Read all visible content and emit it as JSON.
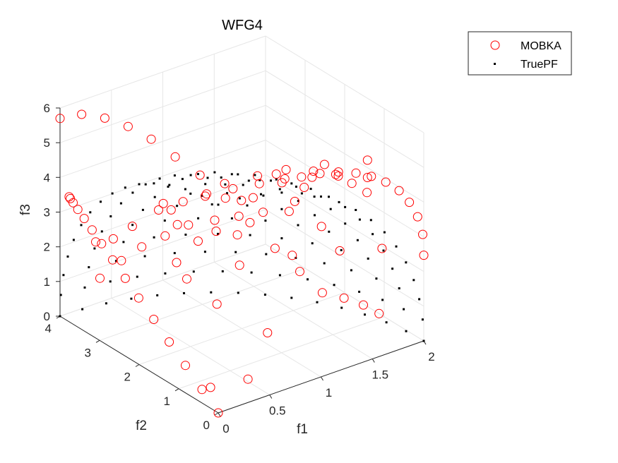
{
  "chart_data": {
    "type": "scatter",
    "title": "WFG4",
    "xlabel": "f1",
    "ylabel": "f2",
    "zlabel": "f3",
    "xlim": [
      0,
      2
    ],
    "ylim": [
      0,
      4
    ],
    "zlim": [
      0,
      6
    ],
    "xticks": [
      "0",
      "0.5",
      "1",
      "1.5",
      "2"
    ],
    "yticks": [
      "0",
      "1",
      "2",
      "3",
      "4"
    ],
    "zticks": [
      "0",
      "1",
      "2",
      "3",
      "4",
      "5",
      "6"
    ],
    "view": "3-D, azimuth -37.5°, elevation 30°",
    "grid": true,
    "legend_position": "top-right",
    "surface": "ellipsoid octant f1²/4 + f2²/16 + f3²/36 = 1",
    "series": [
      {
        "name": "MOBKA",
        "marker": "circle",
        "color": "#ff0000",
        "points_x": [
          0.0,
          0.0,
          0.0,
          0.0,
          0.0,
          0.0,
          0.0,
          0.0,
          0.0,
          0.0,
          0.0,
          0.0,
          0.0,
          0.0,
          0.0,
          0.0,
          0.21,
          0.42,
          0.62,
          0.81,
          0.99,
          1.17,
          1.34,
          1.49,
          1.63,
          1.76,
          1.86,
          1.94,
          1.99,
          2.0,
          0.21,
          0.42,
          0.62,
          0.81,
          0.99,
          1.17,
          1.34,
          1.49,
          1.63,
          1.76,
          1.86,
          1.94,
          1.99,
          2.0,
          0.48,
          0.95,
          1.38,
          1.76,
          0.42,
          0.81,
          1.17,
          1.49,
          1.76,
          1.94,
          0.18,
          0.35,
          0.52,
          0.68,
          0.83,
          0.98,
          1.12,
          1.24,
          1.36,
          1.46,
          0.21,
          0.42,
          0.62,
          0.81,
          0.99,
          1.17,
          1.34,
          1.49,
          1.63,
          1.76,
          0.34,
          0.64,
          0.92,
          1.16,
          1.35,
          1.49,
          1.57,
          1.64,
          1.12,
          0.85,
          0.55,
          0.27,
          0.48,
          0.95,
          1.38,
          1.76,
          0.21,
          0.62,
          0.99,
          1.34,
          1.63
        ],
        "points_y": [
          0.0,
          0.41,
          0.83,
          1.24,
          1.63,
          2.01,
          2.35,
          2.67,
          2.95,
          3.19,
          3.39,
          3.55,
          3.67,
          3.74,
          3.77,
          4.0,
          4.0,
          3.96,
          3.89,
          3.8,
          3.66,
          3.5,
          3.3,
          3.07,
          2.8,
          2.51,
          2.2,
          1.86,
          1.5,
          1.13,
          0.74,
          0.34,
          0.0,
          0.0,
          0.0,
          0.0,
          0.0,
          0.0,
          0.0,
          0.0,
          0.0,
          0.0,
          0.0,
          0.0,
          0.0,
          3.5,
          3.0,
          2.4,
          1.6,
          2.9,
          2.5,
          2.0,
          1.5,
          0.9,
          0.5,
          3.9,
          3.8,
          3.7,
          3.5,
          3.3,
          3.0,
          2.7,
          2.4,
          2.0,
          1.6,
          2.6,
          2.5,
          2.4,
          2.2,
          2.0,
          1.8,
          1.5,
          1.2,
          0.8,
          0.4,
          1.5,
          1.4,
          1.3,
          1.1,
          0.9,
          0.7,
          0.5,
          0.3,
          3.4,
          3.6,
          3.8,
          3.9,
          1.0,
          0.9,
          0.8,
          0.6,
          3.0,
          2.9,
          2.6,
          2.3,
          1.8
        ],
        "points_z": [
          0.0,
          0.39,
          0.79,
          1.18,
          1.56,
          1.91,
          2.24,
          2.55,
          2.82,
          3.05,
          3.24,
          3.39,
          3.5,
          3.57,
          3.6,
          5.7,
          5.6,
          5.3,
          4.9,
          4.4,
          3.8,
          3.2,
          2.5,
          1.8,
          1.1,
          0.5,
          0.0,
          0.0,
          0.0,
          0.0,
          0.0,
          0.3,
          5.99,
          5.96,
          5.87,
          5.73,
          5.52,
          5.27,
          4.96,
          4.58,
          4.14,
          3.64,
          3.08,
          2.47,
          1.81,
          2.0,
          2.6,
          3.0,
          3.4,
          1.0,
          1.3,
          1.6,
          1.8,
          2.1,
          2.6,
          0.8,
          1.2,
          1.5,
          1.8,
          2.1,
          2.3,
          2.5,
          2.7,
          2.9,
          3.0,
          3.6,
          3.7,
          3.8,
          3.9,
          4.0,
          4.1,
          4.2,
          4.3,
          4.4,
          4.5,
          4.9,
          4.9,
          4.9,
          4.8,
          4.7,
          4.5,
          4.3,
          4.0,
          2.6,
          2.3,
          2.0,
          1.8,
          5.2,
          5.1,
          4.9,
          4.6,
          3.3,
          3.2,
          3.0,
          2.8,
          2.5
        ]
      },
      {
        "name": "TruePF",
        "marker": "dot",
        "color": "#000000",
        "grid_steps": 15,
        "model": "ellipsoid octant, semi-axes [2, 4, 6]"
      }
    ]
  },
  "legend": {
    "mobka_label": "MOBKA",
    "truepf_label": "TruePF"
  }
}
